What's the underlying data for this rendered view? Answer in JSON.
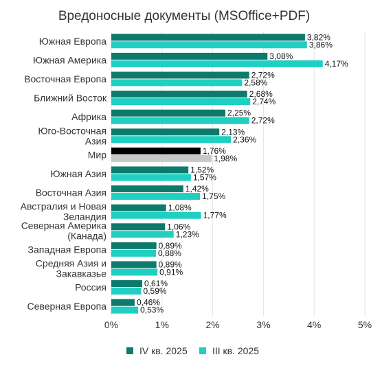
{
  "chart_data": {
    "type": "bar",
    "orientation": "horizontal",
    "title": "Вредоносные документы (MSOffice+PDF)",
    "categories": [
      [
        "Южная Европа"
      ],
      [
        "Южная Америка"
      ],
      [
        "Восточная Европа"
      ],
      [
        "Ближний Восток"
      ],
      [
        "Африка"
      ],
      [
        "Юго-Восточная",
        "Азия"
      ],
      [
        "Мир"
      ],
      [
        "Южная Азия"
      ],
      [
        "Восточная Азия"
      ],
      [
        "Австралия и Новая",
        "Зеландия"
      ],
      [
        "Северная Америка",
        "(Канада)"
      ],
      [
        "Западная Европа"
      ],
      [
        "Средняя Азия и",
        "Закавказье"
      ],
      [
        "Россия"
      ],
      [
        "Северная Европа"
      ]
    ],
    "series": [
      {
        "name": "IV кв. 2025",
        "color": "#0e7a6c",
        "values": [
          3.82,
          3.08,
          2.72,
          2.68,
          2.25,
          2.13,
          1.76,
          1.52,
          1.42,
          1.08,
          1.06,
          0.89,
          0.89,
          0.61,
          0.46
        ]
      },
      {
        "name": "III кв. 2025",
        "color": "#1fcfc1",
        "values": [
          3.86,
          4.17,
          2.58,
          2.74,
          2.72,
          2.36,
          1.98,
          1.57,
          1.75,
          1.77,
          1.23,
          0.88,
          0.91,
          0.59,
          0.53
        ]
      }
    ],
    "highlight": {
      "category": "Мир",
      "colors": [
        "#000000",
        "#c8c8c8"
      ]
    },
    "value_labels": [
      [
        "3,82%",
        "3,86%"
      ],
      [
        "3,08%",
        "4,17%"
      ],
      [
        "2,72%",
        "2,58%"
      ],
      [
        "2,68%",
        "2,74%"
      ],
      [
        "2,25%",
        "2,72%"
      ],
      [
        "2,13%",
        "2,36%"
      ],
      [
        "1,76%",
        "1,98%"
      ],
      [
        "1,52%",
        "1,57%"
      ],
      [
        "1,42%",
        "1,75%"
      ],
      [
        "1,08%",
        "1,77%"
      ],
      [
        "1,06%",
        "1,23%"
      ],
      [
        "0,89%",
        "0,88%"
      ],
      [
        "0,89%",
        "0,91%"
      ],
      [
        "0,61%",
        "0,59%"
      ],
      [
        "0,46%",
        "0,53%"
      ]
    ],
    "xlim": [
      0,
      5
    ],
    "xticks": [
      0,
      1,
      2,
      3,
      4,
      5
    ],
    "xtick_labels": [
      "0%",
      "1%",
      "2%",
      "3%",
      "4%",
      "5%"
    ],
    "grid": true,
    "legend": "bottom",
    "xlabel": "",
    "ylabel": ""
  }
}
